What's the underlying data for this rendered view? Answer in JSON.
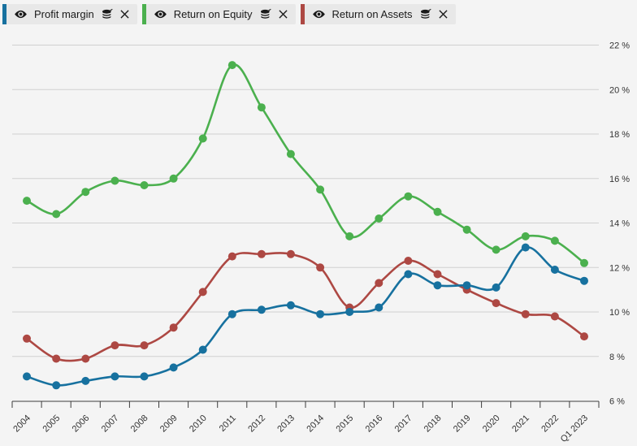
{
  "legend_note": "three series chips, each with eye (visibility), stacked-coins and close controls",
  "colors": {
    "background": "#f4f4f4",
    "chip_background": "#e8e8e8",
    "gridline": "#d0d0d0",
    "axis": "#3c3c3c",
    "tick_label": "#333333",
    "icon": "#1a1a1a",
    "profit_margin": "#17719f",
    "return_on_equity": "#4bb04e",
    "return_on_assets": "#ad4843"
  },
  "chart_data": {
    "type": "line",
    "x": [
      "2004",
      "2005",
      "2006",
      "2007",
      "2008",
      "2009",
      "2010",
      "2011",
      "2012",
      "2013",
      "2014",
      "2015",
      "2016",
      "2017",
      "2018",
      "2019",
      "2020",
      "2021",
      "2022",
      "Q1 2023"
    ],
    "series": [
      {
        "name": "Profit margin",
        "color": "#17719f",
        "values": [
          7.1,
          6.7,
          6.9,
          7.1,
          7.1,
          7.5,
          8.3,
          9.9,
          10.1,
          10.3,
          9.9,
          10.0,
          10.2,
          11.7,
          11.2,
          11.2,
          11.1,
          12.9,
          11.9,
          11.4
        ]
      },
      {
        "name": "Return on Equity",
        "color": "#4bb04e",
        "values": [
          15.0,
          14.4,
          15.4,
          15.9,
          15.7,
          16.0,
          17.8,
          21.1,
          19.2,
          17.1,
          15.5,
          13.4,
          14.2,
          15.2,
          14.5,
          13.7,
          12.8,
          13.4,
          13.2,
          12.2
        ]
      },
      {
        "name": "Return on Assets",
        "color": "#ad4843",
        "values": [
          8.8,
          7.9,
          7.9,
          8.5,
          8.5,
          9.3,
          10.9,
          12.5,
          12.6,
          12.6,
          12.0,
          10.2,
          11.3,
          12.3,
          11.7,
          11.0,
          10.4,
          9.9,
          9.8,
          8.9
        ]
      }
    ],
    "title": "",
    "xlabel": "",
    "ylabel": "",
    "ylim": [
      6,
      22
    ],
    "ytick_step": 2,
    "ytick_suffix": " %",
    "ytick_labels": [
      "6 %",
      "8 %",
      "10 %",
      "12 %",
      "14 %",
      "16 %",
      "18 %",
      "20 %",
      "22 %"
    ],
    "grid": true,
    "legend_position": "top-left",
    "marker": "circle",
    "smooth": true
  }
}
